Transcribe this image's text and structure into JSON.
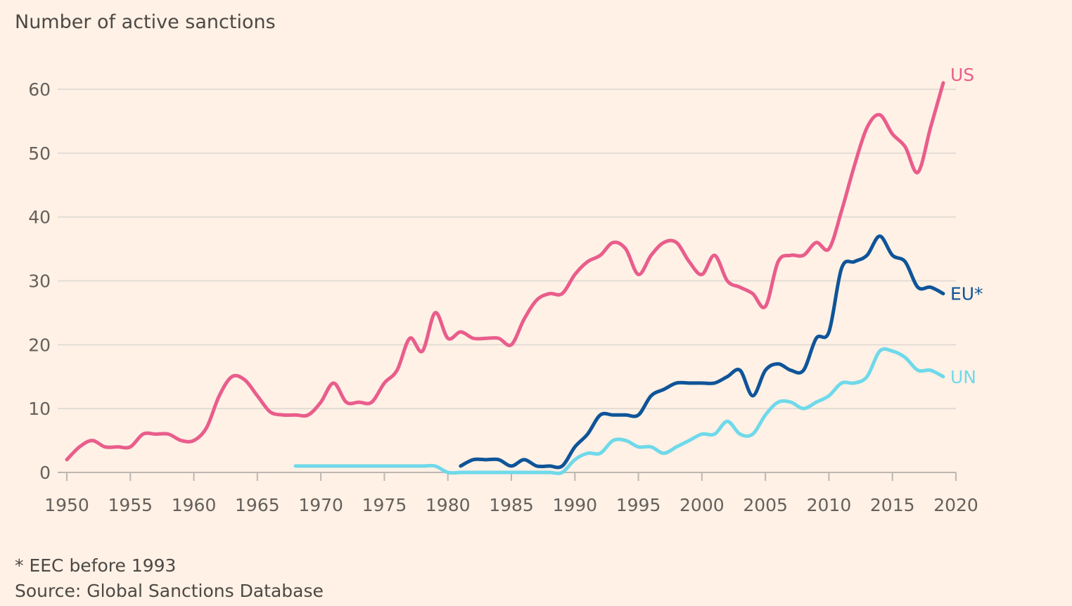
{
  "chart_data": {
    "type": "line",
    "title": "Number of active sanctions",
    "xlabel": "",
    "ylabel": "",
    "xlim": [
      1950,
      2020
    ],
    "ylim": [
      0,
      60
    ],
    "xticks": [
      "1950",
      "1955",
      "1960",
      "1965",
      "1970",
      "1975",
      "1980",
      "1985",
      "1990",
      "1995",
      "2000",
      "2005",
      "2010",
      "2015",
      "2020"
    ],
    "yticks": [
      "0",
      "10",
      "20",
      "30",
      "40",
      "50",
      "60"
    ],
    "grid": true,
    "legend": "direct labels at line ends",
    "series": [
      {
        "name": "US",
        "color": "#e95d8c",
        "start_year": 1950,
        "values": [
          2,
          4,
          5,
          4,
          4,
          4,
          6,
          6,
          6,
          5,
          5,
          7,
          12,
          15,
          14.5,
          12,
          9.5,
          9,
          9,
          9,
          11,
          14,
          11,
          11,
          11,
          14,
          16,
          21,
          19,
          25,
          21,
          22,
          21,
          21,
          21,
          20,
          24,
          27,
          28,
          28,
          31,
          33,
          34,
          36,
          35,
          31,
          34,
          36,
          36,
          33,
          31,
          34,
          30,
          29,
          28,
          26,
          33,
          34,
          34,
          36,
          35,
          41,
          48,
          54,
          56,
          53,
          51,
          47,
          54,
          61
        ]
      },
      {
        "name": "EU*",
        "color": "#0f5499",
        "start_year": 1981,
        "values": [
          1,
          2,
          2,
          2,
          1,
          2,
          1,
          1,
          1,
          4,
          6,
          9,
          9,
          9,
          9,
          12,
          13,
          14,
          14,
          14,
          14,
          15,
          16,
          12,
          16,
          17,
          16,
          16,
          21,
          22,
          32,
          33,
          34,
          37,
          34,
          33,
          29,
          29,
          28
        ]
      },
      {
        "name": "UN",
        "color": "#6fd9ea",
        "start_year": 1968,
        "values": [
          1,
          1,
          1,
          1,
          1,
          1,
          1,
          1,
          1,
          1,
          1,
          1,
          0,
          0,
          0,
          0,
          0,
          0,
          0,
          0,
          0,
          0,
          2,
          3,
          3,
          5,
          5,
          4,
          4,
          3,
          4,
          5,
          6,
          6,
          8,
          6,
          6,
          9,
          11,
          11,
          10,
          11,
          12,
          14,
          14,
          15,
          19,
          19,
          18,
          16,
          16,
          15
        ]
      }
    ],
    "footnotes": [
      "* EEC before 1993",
      "Source: Global Sanctions Database"
    ]
  }
}
